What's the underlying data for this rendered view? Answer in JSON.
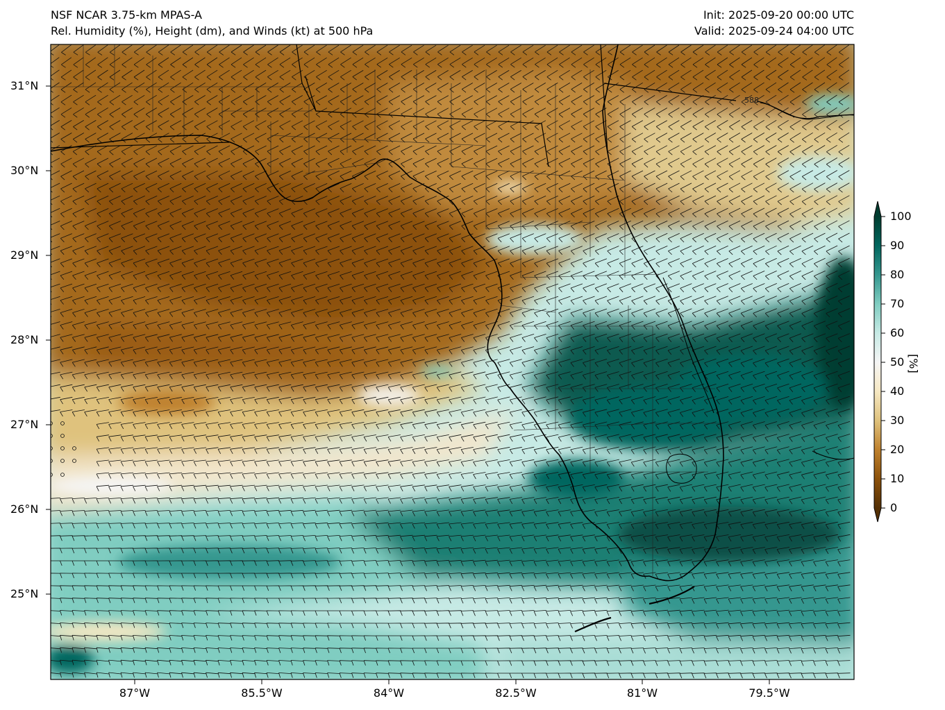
{
  "header": {
    "model": "NSF NCAR 3.75-km MPAS-A",
    "fields": "Rel. Humidity (%), Height (dm), and Winds (kt) at 500 hPa",
    "init": "Init: 2025-09-20 00:00 UTC",
    "valid": "Valid: 2025-09-24 04:00 UTC"
  },
  "map": {
    "lat_labels": [
      "31°N",
      "30°N",
      "29°N",
      "28°N",
      "27°N",
      "26°N",
      "25°N"
    ],
    "lon_labels": [
      "87°W",
      "85.5°W",
      "84°W",
      "82.5°W",
      "81°W",
      "79.5°W"
    ],
    "contour_label": "588"
  },
  "colorbar": {
    "ticks": [
      "100",
      "90",
      "80",
      "70",
      "60",
      "50",
      "40",
      "30",
      "20",
      "10",
      "0"
    ],
    "unit": "[%]",
    "colors": [
      "#543005",
      "#8c510a",
      "#bf812d",
      "#dfc27d",
      "#f6e8c3",
      "#f5f5f5",
      "#c7eae5",
      "#80cdc1",
      "#35978f",
      "#01665e",
      "#003c30"
    ]
  }
}
